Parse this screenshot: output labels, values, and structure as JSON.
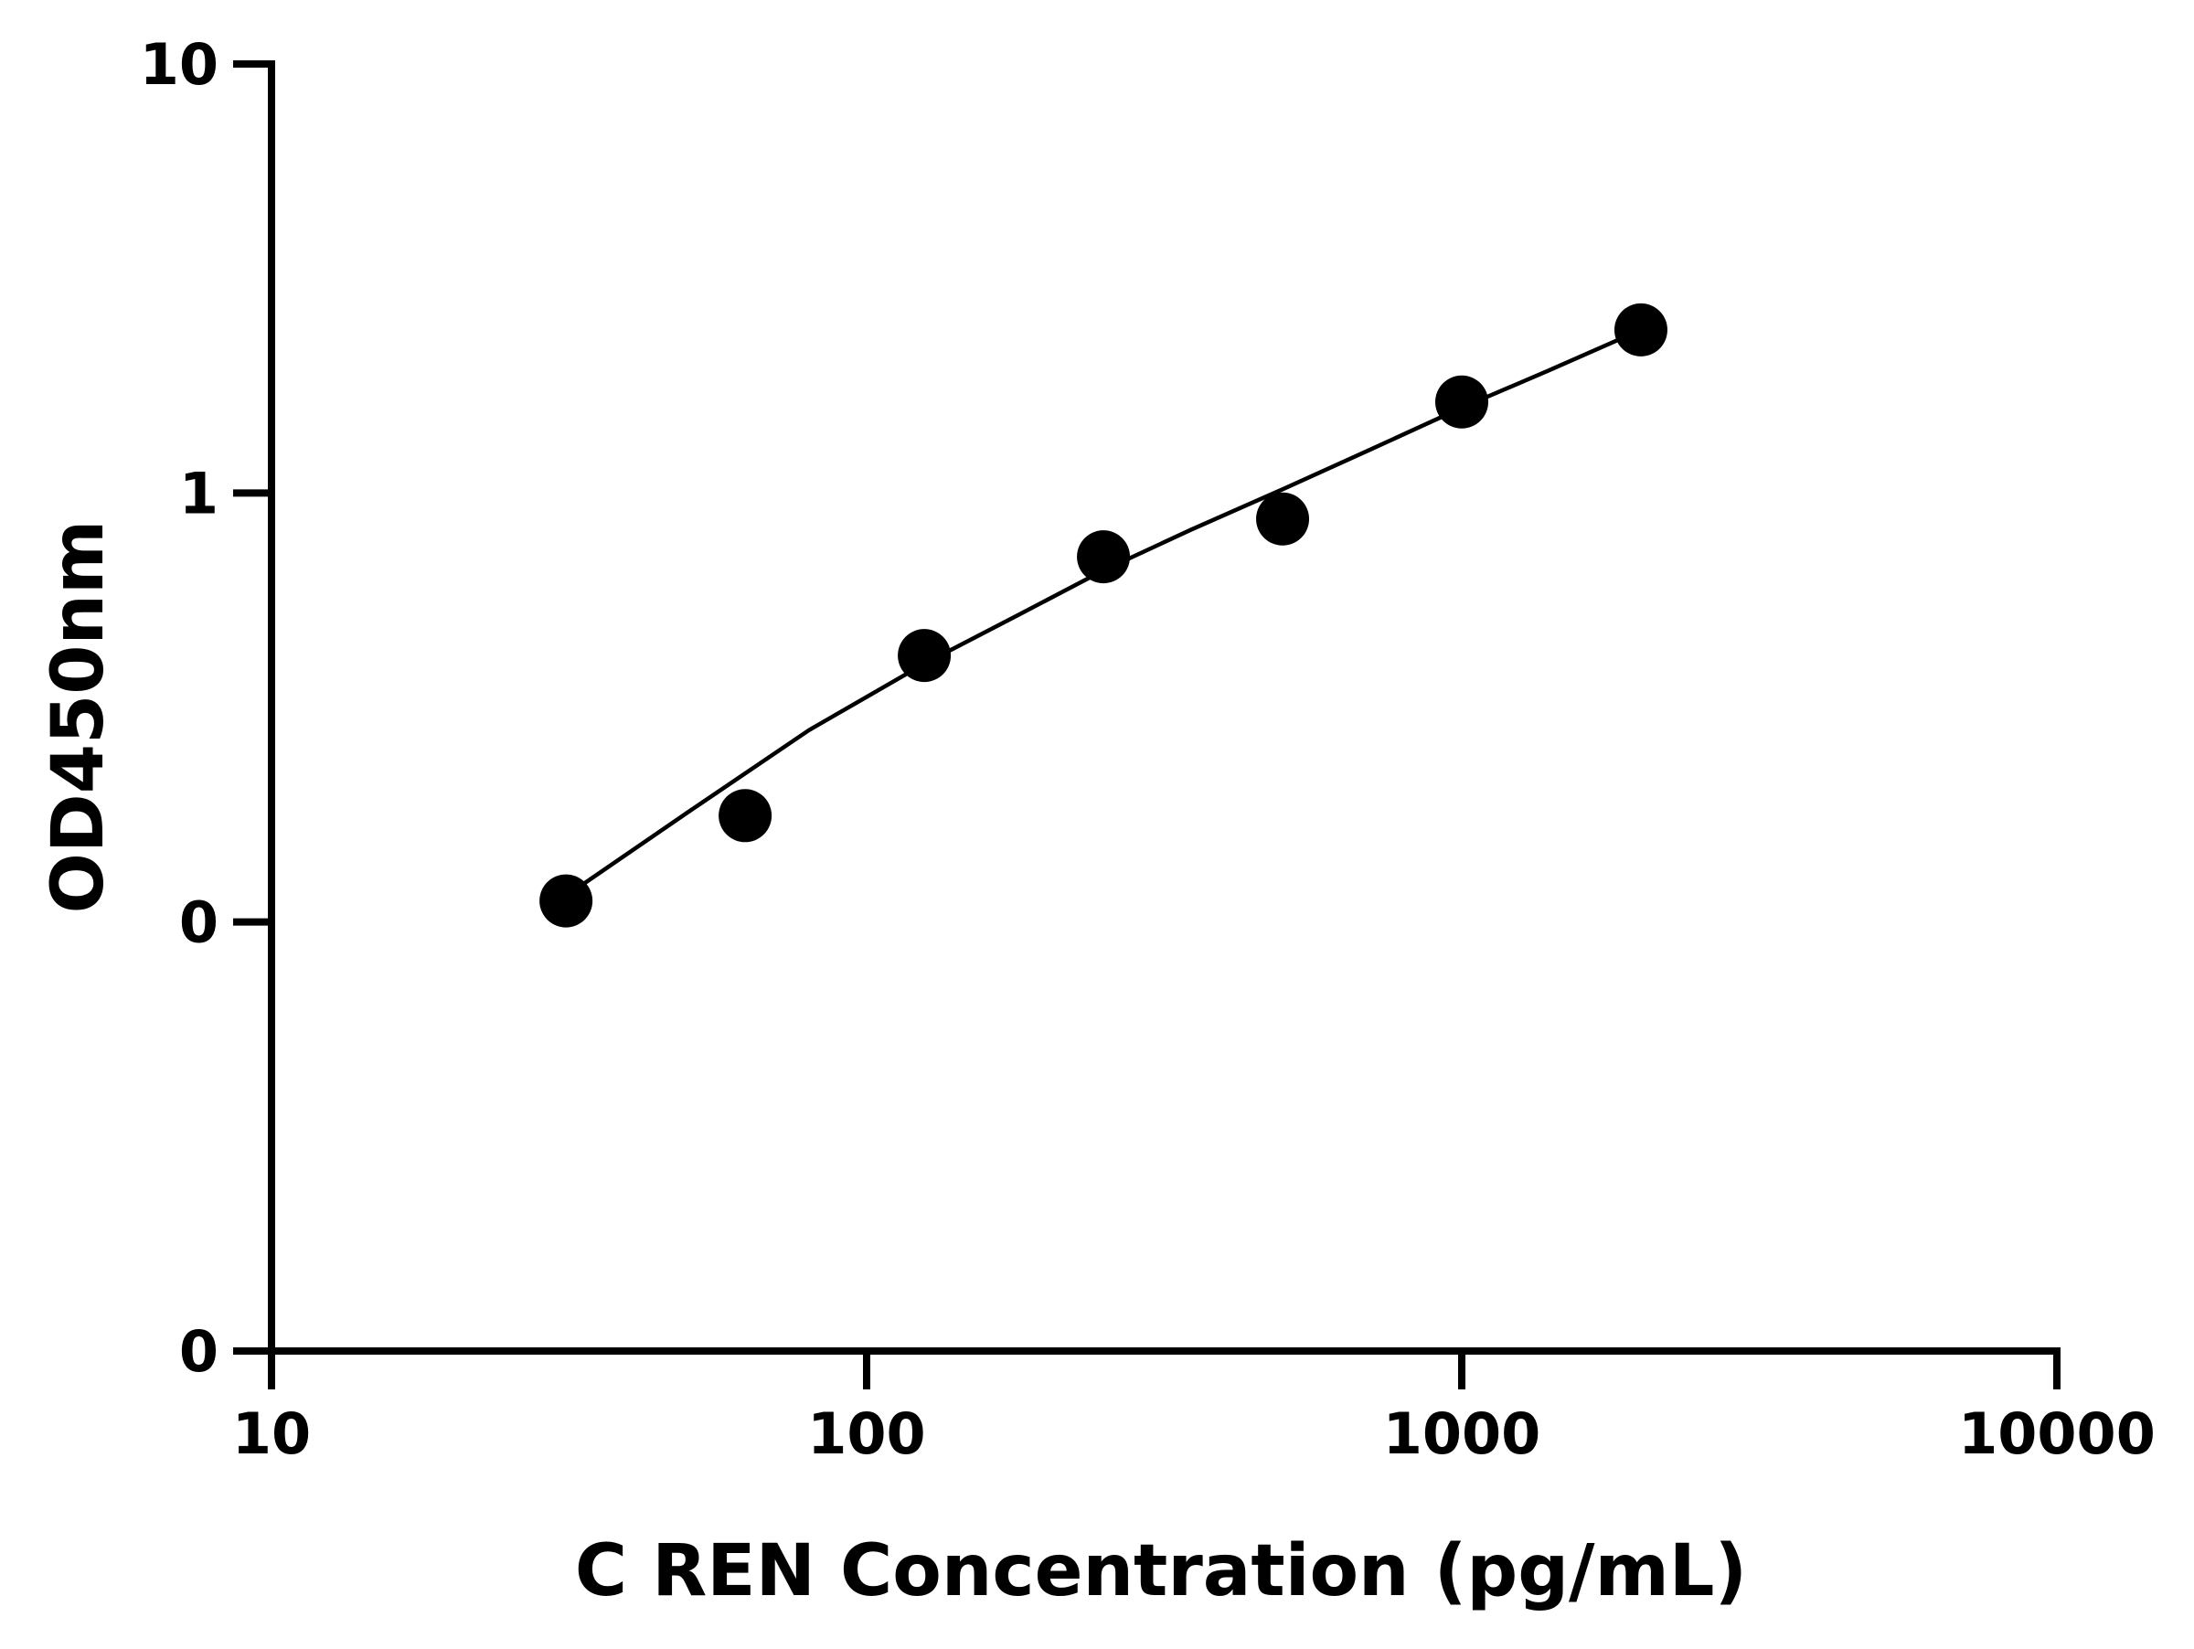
{
  "chart_data": {
    "type": "scatter",
    "title": "",
    "xlabel": "C REN Concentration (pg/mL)",
    "ylabel": "OD450nm",
    "x_scale": "log",
    "y_scale": "log",
    "xlim": [
      10,
      10000
    ],
    "ylim_ticks_labeled": [
      "0",
      "0",
      "1",
      "10"
    ],
    "x_ticks": [
      {
        "value": 10,
        "label": "10"
      },
      {
        "value": 100,
        "label": "100"
      },
      {
        "value": 1000,
        "label": "1000"
      },
      {
        "value": 10000,
        "label": "10000"
      }
    ],
    "y_ticks": [
      {
        "value": 0.01,
        "label": "0"
      },
      {
        "value": 0.1,
        "label": "0"
      },
      {
        "value": 1,
        "label": "1"
      },
      {
        "value": 10,
        "label": "10"
      }
    ],
    "grid": false,
    "legend": "none",
    "series": [
      {
        "points": [
          {
            "x": 31.25,
            "y": 0.112
          },
          {
            "x": 62.5,
            "y": 0.177
          },
          {
            "x": 125,
            "y": 0.418
          },
          {
            "x": 250,
            "y": 0.71
          },
          {
            "x": 500,
            "y": 0.87
          },
          {
            "x": 1000,
            "y": 1.63
          },
          {
            "x": 2000,
            "y": 2.4
          }
        ]
      }
    ],
    "fit_curve": {
      "type": "line",
      "x": [
        31.25,
        50,
        80,
        125,
        180,
        250,
        350,
        500,
        700,
        1000,
        1400,
        2000
      ],
      "y": [
        0.115,
        0.18,
        0.28,
        0.4,
        0.52,
        0.66,
        0.82,
        1.02,
        1.26,
        1.58,
        1.93,
        2.4
      ]
    },
    "colors": {
      "marker": "#000000",
      "line": "#000000",
      "axis": "#000000"
    }
  }
}
